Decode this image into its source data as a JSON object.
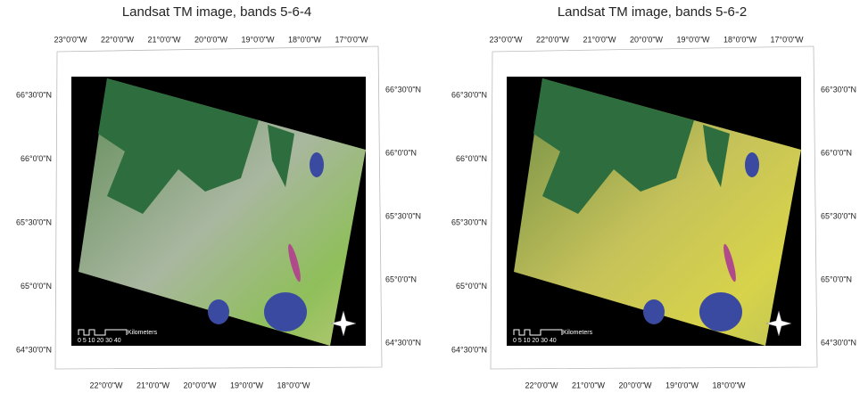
{
  "panels": [
    {
      "title": "Landsat TM image, bands 5-6-4",
      "top_labels": [
        "23°0'0\"W",
        "22°0'0\"W",
        "21°0'0\"W",
        "20°0'0\"W",
        "19°0'0\"W",
        "18°0'0\"W",
        "17°0'0\"W"
      ],
      "left_labels": [
        "66°30'0\"N",
        "66°0'0\"N",
        "65°30'0\"N",
        "65°0'0\"N",
        "64°30'0\"N"
      ],
      "right_labels": [
        "66°30'0\"N",
        "66°0'0\"N",
        "65°30'0\"N",
        "65°0'0\"N",
        "64°30'0\"N"
      ],
      "bottom_labels": [
        "22°0'0\"W",
        "21°0'0\"W",
        "20°0'0\"W",
        "19°0'0\"W",
        "18°0'0\"W"
      ],
      "scale_unit": "Kilometers",
      "scale_numbers": "0 5 10 20 30 40"
    },
    {
      "title": "Landsat TM image, bands 5-6-2",
      "top_labels": [
        "23°0'0\"W",
        "22°0'0\"W",
        "21°0'0\"W",
        "20°0'0\"W",
        "19°0'0\"W",
        "18°0'0\"W",
        "17°0'0\"W"
      ],
      "left_labels": [
        "66°30'0\"N",
        "66°0'0\"N",
        "65°30'0\"N",
        "65°0'0\"N",
        "64°30'0\"N"
      ],
      "right_labels": [
        "66°30'0\"N",
        "66°0'0\"N",
        "65°30'0\"N",
        "65°0'0\"N",
        "64°30'0\"N"
      ],
      "bottom_labels": [
        "22°0'0\"W",
        "21°0'0\"W",
        "20°0'0\"W",
        "19°0'0\"W",
        "18°0'0\"W"
      ],
      "scale_unit": "Kilometers",
      "scale_numbers": "0 5 10 20 30 40"
    }
  ]
}
